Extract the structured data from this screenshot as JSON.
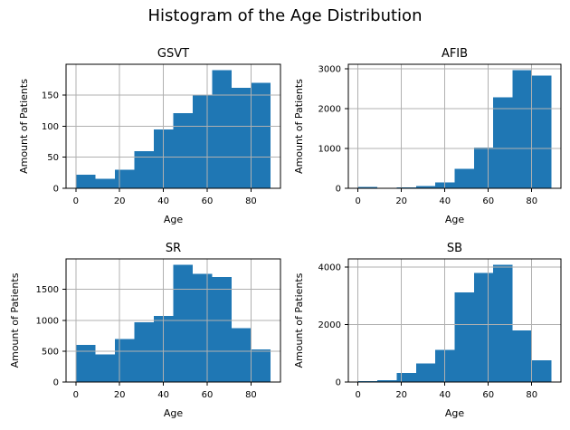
{
  "figure": {
    "title": "Histogram of the Age Distribution"
  },
  "colors": {
    "bar": "#1f77b4",
    "grid": "#b0b0b0",
    "spine": "#000000",
    "text": "#000000",
    "background": "#ffffff"
  },
  "chart_data": [
    {
      "type": "bar",
      "title": "GSVT",
      "xlabel": "Age",
      "ylabel": "Amount of Patients",
      "bin_start": 0,
      "bin_width": 8.9,
      "values": [
        22,
        15,
        30,
        60,
        95,
        121,
        150,
        190,
        162,
        170
      ],
      "xticks": [
        0,
        20,
        40,
        60,
        80
      ],
      "yticks": [
        0,
        50,
        100,
        150
      ],
      "xlim": [
        -4.45,
        93.45
      ],
      "ylim": [
        0,
        199.5
      ],
      "grid": true,
      "legend": false
    },
    {
      "type": "bar",
      "title": "AFIB",
      "xlabel": "Age",
      "ylabel": "Amount of Patients",
      "bin_start": 0,
      "bin_width": 8.9,
      "values": [
        30,
        5,
        25,
        60,
        150,
        485,
        1020,
        2290,
        2970,
        2830
      ],
      "xticks": [
        0,
        20,
        40,
        60,
        80
      ],
      "yticks": [
        0,
        1000,
        2000,
        3000
      ],
      "xlim": [
        -4.45,
        93.45
      ],
      "ylim": [
        0,
        3118.5
      ],
      "grid": true,
      "legend": false
    },
    {
      "type": "bar",
      "title": "SR",
      "xlabel": "Age",
      "ylabel": "Amount of Patients",
      "bin_start": 0,
      "bin_width": 8.9,
      "values": [
        600,
        445,
        700,
        970,
        1070,
        1900,
        1750,
        1700,
        875,
        530
      ],
      "xticks": [
        0,
        20,
        40,
        60,
        80
      ],
      "yticks": [
        0,
        500,
        1000,
        1500
      ],
      "xlim": [
        -4.45,
        93.45
      ],
      "ylim": [
        0,
        1995
      ],
      "grid": true,
      "legend": false
    },
    {
      "type": "bar",
      "title": "SB",
      "xlabel": "Age",
      "ylabel": "Amount of Patients",
      "bin_start": 0,
      "bin_width": 8.9,
      "values": [
        30,
        65,
        310,
        650,
        1120,
        3120,
        3800,
        4080,
        1800,
        750
      ],
      "xticks": [
        0,
        20,
        40,
        60,
        80
      ],
      "yticks": [
        0,
        2000,
        4000
      ],
      "xlim": [
        -4.45,
        93.45
      ],
      "ylim": [
        0,
        4284
      ],
      "grid": true,
      "legend": false
    }
  ]
}
